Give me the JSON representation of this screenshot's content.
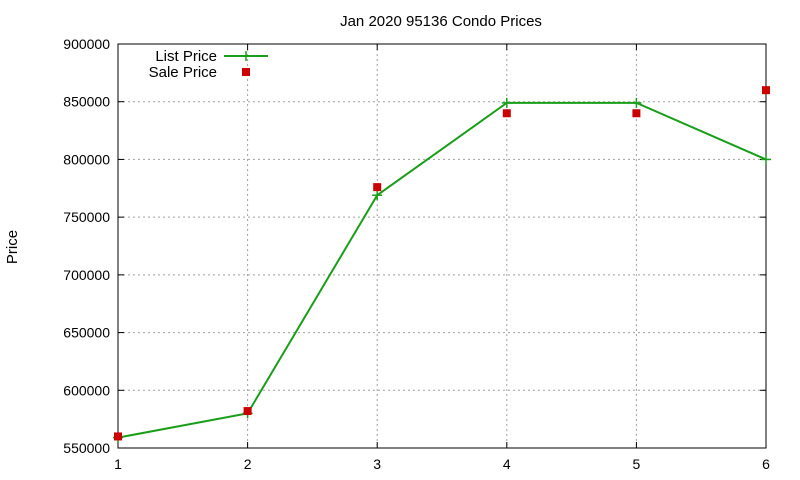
{
  "chart_data": {
    "type": "line",
    "title": "Jan 2020 95136 Condo Prices",
    "xlabel": "",
    "ylabel": "Price",
    "x": [
      1,
      2,
      3,
      4,
      5,
      6
    ],
    "xlim": [
      1,
      6
    ],
    "ylim": [
      550000,
      900000
    ],
    "xticks": [
      "1",
      "2",
      "3",
      "4",
      "5",
      "6"
    ],
    "yticks": [
      "550000",
      "600000",
      "650000",
      "700000",
      "750000",
      "800000",
      "850000",
      "900000"
    ],
    "grid": true,
    "legend_position": "top-left",
    "series": [
      {
        "name": "List Price",
        "style": "line-points",
        "marker": "plus",
        "color": "#1a9e1a",
        "values": [
          559000,
          580000,
          769000,
          849000,
          849000,
          800000
        ]
      },
      {
        "name": "Sale Price",
        "style": "points",
        "marker": "square",
        "color": "#cc0000",
        "values": [
          560000,
          582000,
          776000,
          840000,
          840000,
          860000
        ]
      }
    ]
  }
}
